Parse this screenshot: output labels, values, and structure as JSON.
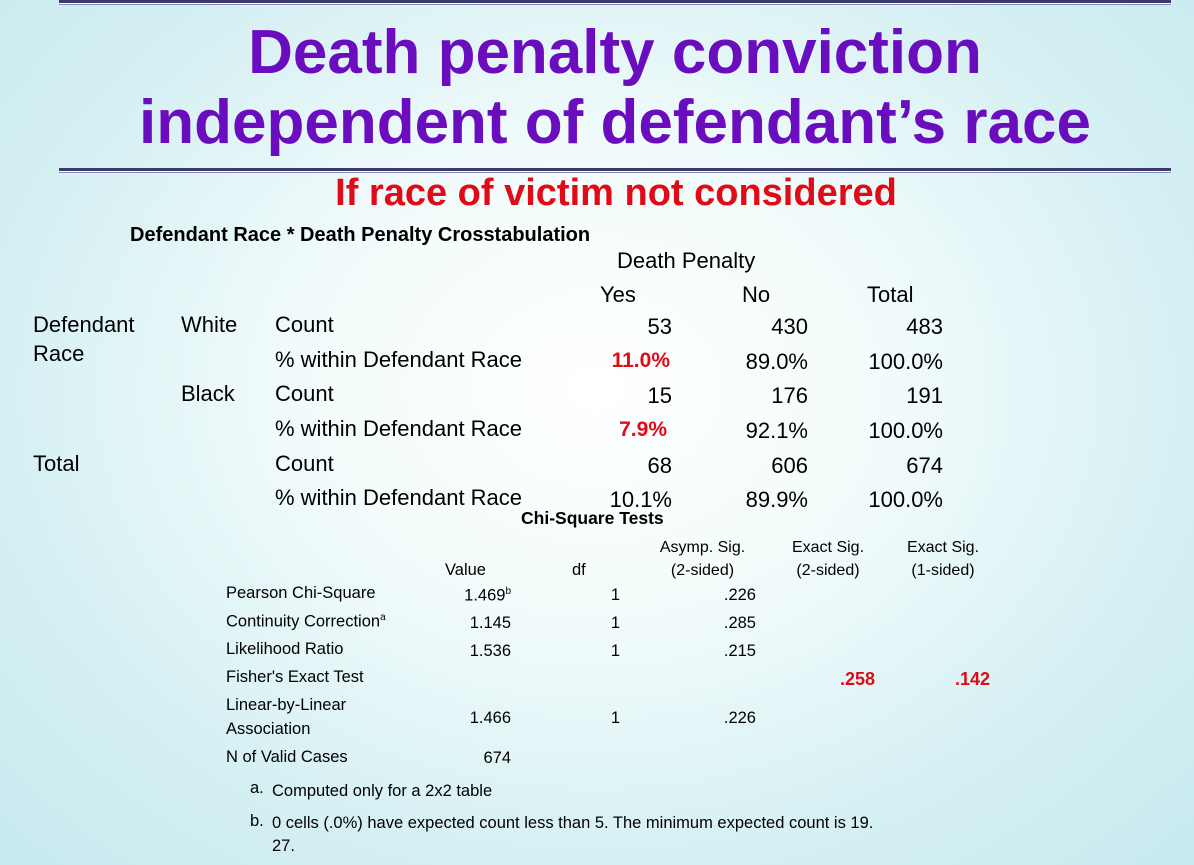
{
  "slide": {
    "title_line1": "Death penalty conviction",
    "title_line2": "independent of defendant’s race",
    "subtitle": "If race of victim not considered"
  },
  "crosstab": {
    "title": "Defendant Race * Death Penalty Crosstabulation",
    "col_group": "Death Penalty",
    "columns": [
      "Yes",
      "No",
      "Total"
    ],
    "row_group_line1": "Defendant",
    "row_group_line2": "Race",
    "rows": [
      {
        "group": "White",
        "stat": "Count",
        "values": [
          "53",
          "430",
          "483"
        ]
      },
      {
        "group": "",
        "stat": "% within Defendant Race",
        "values": [
          "11.0%",
          "89.0%",
          "100.0%"
        ]
      },
      {
        "group": "Black",
        "stat": "Count",
        "values": [
          "15",
          "176",
          "191"
        ]
      },
      {
        "group": "",
        "stat": "% within Defendant Race",
        "values": [
          "7.9%",
          "92.1%",
          "100.0%"
        ]
      },
      {
        "group": "Total",
        "stat": "Count",
        "values": [
          "68",
          "606",
          "674"
        ]
      },
      {
        "group": "",
        "stat": "% within Defendant Race",
        "values": [
          "10.1%",
          "89.9%",
          "100.0%"
        ]
      }
    ]
  },
  "chisq": {
    "title": "Chi-Square Tests",
    "headers": {
      "value": "Value",
      "df": "df",
      "asymp_line1": "Asymp. Sig.",
      "asymp_line2": "(2-sided)",
      "exact2_line1": "Exact Sig.",
      "exact2_line2": "(2-sided)",
      "exact1_line1": "Exact Sig.",
      "exact1_line2": "(1-sided)"
    },
    "rows": [
      {
        "label": "Pearson Chi-Square",
        "sup": "",
        "value": "1.469",
        "value_sup": "b",
        "df": "1",
        "asymp": ".226",
        "exact2": "",
        "exact1": ""
      },
      {
        "label": "Continuity Correction",
        "sup": "a",
        "value": "1.145",
        "value_sup": "",
        "df": "1",
        "asymp": ".285",
        "exact2": "",
        "exact1": ""
      },
      {
        "label": "Likelihood Ratio",
        "sup": "",
        "value": "1.536",
        "value_sup": "",
        "df": "1",
        "asymp": ".215",
        "exact2": "",
        "exact1": ""
      },
      {
        "label": "Fisher's Exact Test",
        "sup": "",
        "value": "",
        "value_sup": "",
        "df": "",
        "asymp": "",
        "exact2": ".258",
        "exact1": ".142"
      },
      {
        "label_line1": "Linear-by-Linear",
        "label_line2": "Association",
        "value": "1.466",
        "df": "1",
        "asymp": ".226"
      },
      {
        "label": "N of Valid Cases",
        "value": "674"
      }
    ],
    "footnotes": [
      {
        "mark": "a.",
        "text": "Computed only for a 2x2 table"
      },
      {
        "mark": "b.",
        "text_line1": "0 cells (.0%) have expected count less than 5. The minimum expected count is 19.",
        "text_line2": "27."
      }
    ]
  }
}
